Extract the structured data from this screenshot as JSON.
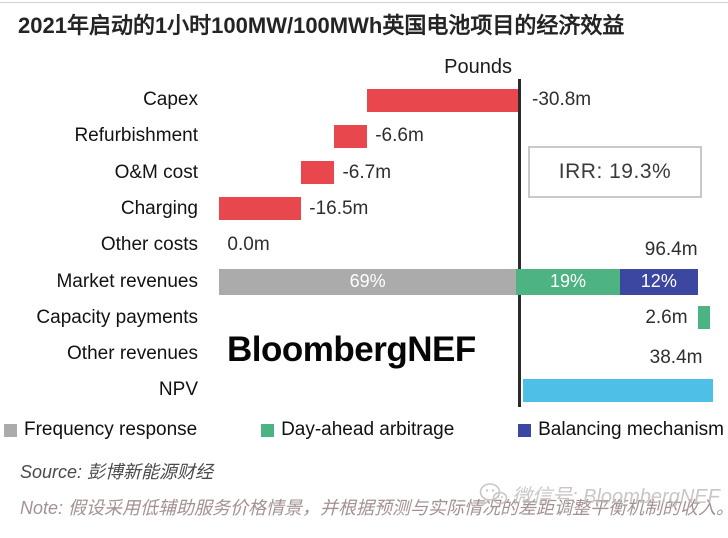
{
  "title": "2021年启动的1小时100MW/100MWh英国电池项目的经济效益",
  "chart_data": {
    "type": "bar",
    "subtype": "waterfall",
    "orientation": "horizontal",
    "unit_header": "Pounds",
    "irr_label": "IRR: 19.3%",
    "categories": [
      "Capex",
      "Refurbishment",
      "O&M cost",
      "Charging",
      "Other costs",
      "Market revenues",
      "Capacity payments",
      "Other revenues",
      "NPV"
    ],
    "values_m": [
      -30.8,
      -6.6,
      -6.7,
      -16.5,
      0.0,
      96.4,
      2.6,
      0.0,
      38.4
    ],
    "value_labels": [
      "-30.8m",
      "-6.6m",
      "-6.7m",
      "-16.5m",
      "0.0m",
      "96.4m",
      "2.6m",
      "",
      "38.4m"
    ],
    "market_revenue_segments": [
      {
        "name": "Frequency response",
        "percent_label": "69%",
        "color": "#ababab"
      },
      {
        "name": "Day-ahead arbitrage",
        "percent_label": "19%",
        "color": "#4db382"
      },
      {
        "name": "Balancing mechanism",
        "percent_label": "12%",
        "color": "#3b47a1"
      }
    ],
    "colors": {
      "cost": "#e8474e",
      "capacity": "#4db382",
      "npv": "#4ec0e8",
      "axis": "#2b2b2b"
    },
    "legend_position": "bottom",
    "grid": false
  },
  "watermark_center": "BloombergNEF",
  "watermark_corner": "微信号: BloombergNEF",
  "source": "Source: 彭博新能源财经",
  "note": "Note: 假设采用低辅助服务价格情景，并根据预测与实际情况的差距调整平衡机制的收入。"
}
